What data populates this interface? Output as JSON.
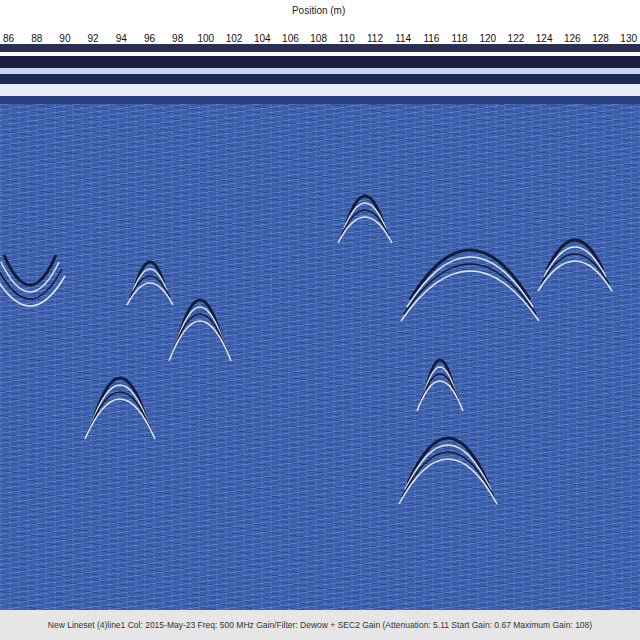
{
  "chart_data": {
    "type": "radargram",
    "xlabel": "Position (m)",
    "xlim": [
      85.65,
      130.35
    ],
    "xticks": [
      86,
      88,
      90,
      92,
      94,
      96,
      98,
      100,
      102,
      104,
      106,
      108,
      110,
      112,
      114,
      116,
      118,
      120,
      122,
      124,
      126,
      128,
      130
    ],
    "tick_labels": "x",
    "grid": false,
    "annotations": [
      "New Lineset (4)line1  Col: 2015-May-23  Freq: 500 MHz  Gain/Filter: Dewow + SEC2 Gain  (Attenuation: 5.11  Start Gain: 0.67  Maximum Gain: 108)"
    ]
  }
}
